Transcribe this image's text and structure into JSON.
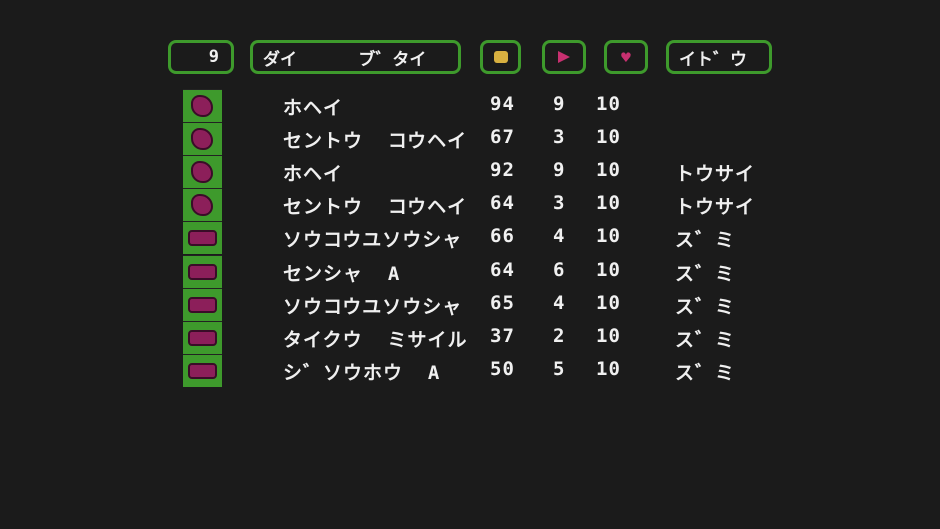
{
  "header": {
    "count": "9",
    "unit_label": "ダイ      ブ゛タイ",
    "fuel_icon": "fuel-icon",
    "move_icon": "movement-icon",
    "hp_icon": "heart-icon",
    "move_label": "イト゛ウ"
  },
  "colors": {
    "border": "#3e9a2c",
    "fuel": "#d8b040",
    "move": "#c83070",
    "hp": "#c83070",
    "unit": "#8c1f5a"
  },
  "units": [
    {
      "type": "infantry",
      "name": "ホヘイ",
      "fuel": "94",
      "move": "9",
      "hp": "10",
      "status": ""
    },
    {
      "type": "infantry",
      "name": "セントウ  コウヘイ",
      "fuel": "67",
      "move": "3",
      "hp": "10",
      "status": ""
    },
    {
      "type": "infantry",
      "name": "ホヘイ",
      "fuel": "92",
      "move": "9",
      "hp": "10",
      "status": "トウサイ"
    },
    {
      "type": "infantry",
      "name": "セントウ  コウヘイ",
      "fuel": "64",
      "move": "3",
      "hp": "10",
      "status": "トウサイ"
    },
    {
      "type": "vehicle",
      "name": "ソウコウユソウシャ",
      "fuel": "66",
      "move": "4",
      "hp": "10",
      "status": "ス゛ミ"
    },
    {
      "type": "vehicle",
      "name": "センシャ  A",
      "fuel": "64",
      "move": "6",
      "hp": "10",
      "status": "ス゛ミ"
    },
    {
      "type": "vehicle",
      "name": "ソウコウユソウシャ",
      "fuel": "65",
      "move": "4",
      "hp": "10",
      "status": "ス゛ミ"
    },
    {
      "type": "vehicle",
      "name": "タイクウ  ミサイル",
      "fuel": "37",
      "move": "2",
      "hp": "10",
      "status": "ス゛ミ"
    },
    {
      "type": "vehicle",
      "name": "シ゛ソウホウ  A",
      "fuel": "50",
      "move": "5",
      "hp": "10",
      "status": "ス゛ミ"
    }
  ]
}
